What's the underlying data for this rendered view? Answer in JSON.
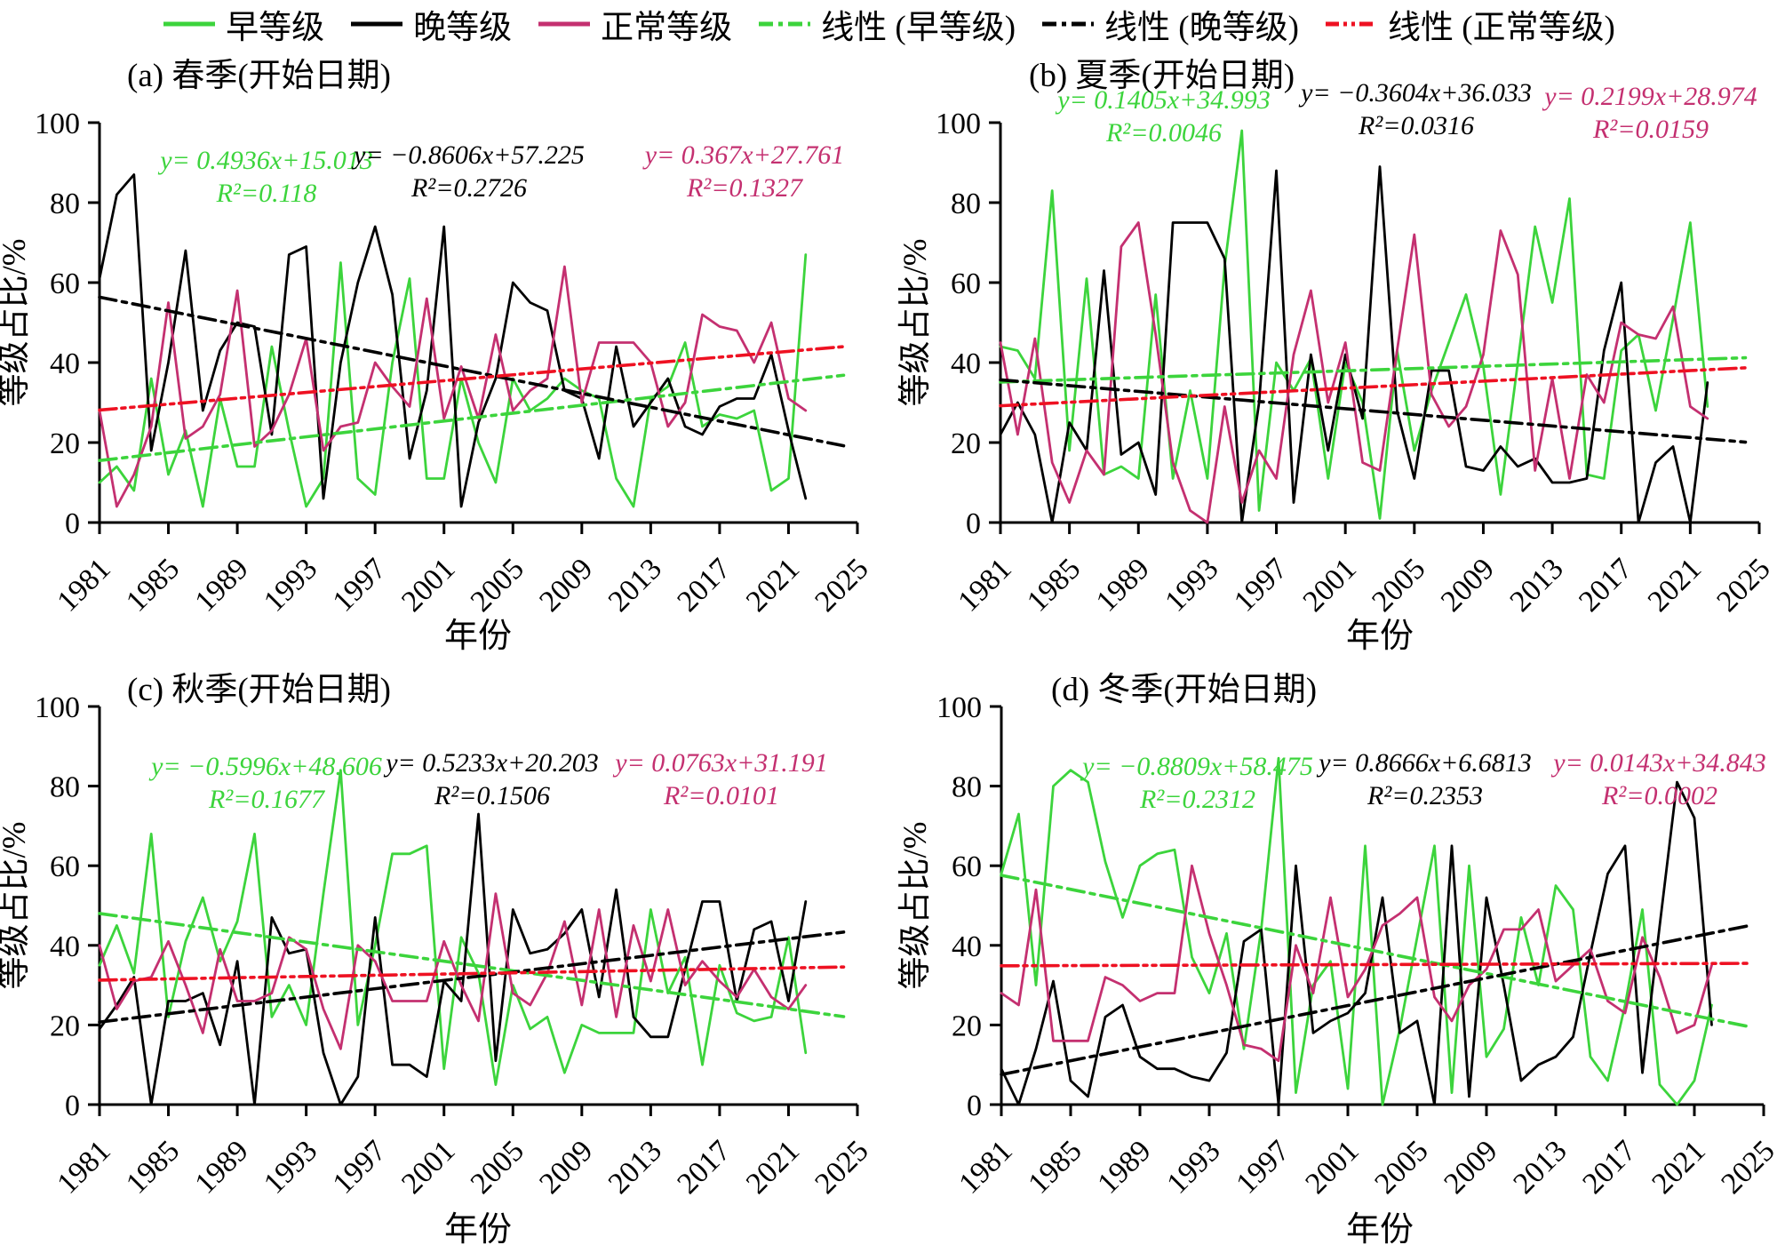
{
  "colors": {
    "early": "#3cd43c",
    "late": "#000000",
    "normal": "#c43070",
    "trend_normal": "#ee1122",
    "background": "#ffffff"
  },
  "legend": {
    "items": [
      {
        "label": "早等级",
        "color": "#3cd43c",
        "style": "solid"
      },
      {
        "label": "晚等级",
        "color": "#000000",
        "style": "solid"
      },
      {
        "label": "正常等级",
        "color": "#c43070",
        "style": "solid"
      },
      {
        "label": "线性 (早等级)",
        "color": "#3cd43c",
        "style": "dashdot"
      },
      {
        "label": "线性 (晚等级)",
        "color": "#000000",
        "style": "dashdot"
      },
      {
        "label": "线性 (正常等级)",
        "color": "#ee1122",
        "style": "dashdot"
      }
    ]
  },
  "chart_data": [
    {
      "type": "line",
      "title": "(a) 春季(开始日期)",
      "xlabel": "年份",
      "ylabel": "等级占比/%",
      "xlim": [
        1981,
        2025
      ],
      "ylim": [
        0,
        100
      ],
      "x_ticks": [
        1981,
        1985,
        1989,
        1993,
        1997,
        2001,
        2005,
        2009,
        2013,
        2017,
        2021,
        2025
      ],
      "y_ticks": [
        0,
        20,
        40,
        60,
        80,
        100
      ],
      "years": [
        1981,
        1982,
        1983,
        1984,
        1985,
        1986,
        1987,
        1988,
        1989,
        1990,
        1991,
        1992,
        1993,
        1994,
        1995,
        1996,
        1997,
        1998,
        1999,
        2000,
        2001,
        2002,
        2003,
        2004,
        2005,
        2006,
        2007,
        2008,
        2009,
        2010,
        2011,
        2012,
        2013,
        2014,
        2015,
        2016,
        2017,
        2018,
        2019,
        2020,
        2021,
        2022
      ],
      "series": [
        {
          "name": "早等级",
          "color": "#3cd43c",
          "values": [
            10,
            14,
            8,
            36,
            12,
            23,
            4,
            31,
            14,
            14,
            44,
            23,
            4,
            11,
            65,
            11,
            7,
            40,
            61,
            11,
            11,
            36,
            20,
            10,
            36,
            28,
            31,
            36,
            33,
            31,
            11,
            4,
            31,
            34,
            45,
            24,
            27,
            26,
            28,
            8,
            11,
            67
          ]
        },
        {
          "name": "晚等级",
          "color": "#000000",
          "values": [
            61,
            82,
            87,
            18,
            40,
            68,
            28,
            43,
            50,
            49,
            22,
            67,
            69,
            6,
            40,
            60,
            74,
            57,
            16,
            33,
            74,
            4,
            25,
            36,
            60,
            55,
            53,
            33,
            31,
            16,
            44,
            24,
            30,
            36,
            24,
            22,
            29,
            31,
            31,
            42,
            23,
            6
          ]
        },
        {
          "name": "正常等级",
          "color": "#c43070",
          "values": [
            28,
            4,
            12,
            24,
            55,
            21,
            24,
            32,
            58,
            19,
            23,
            32,
            46,
            18,
            24,
            25,
            40,
            34,
            29,
            56,
            26,
            39,
            26,
            47,
            28,
            33,
            36,
            64,
            30,
            45,
            45,
            45,
            40,
            24,
            30,
            52,
            49,
            48,
            40,
            50,
            31,
            28
          ]
        }
      ],
      "trends": [
        {
          "name": "线性 (早等级)",
          "line_color": "#3cd43c",
          "text_color": "#3cd43c",
          "slope": 0.4936,
          "intercept": 15.013,
          "equation": "y= 0.4936x+15.013",
          "r2": "R²=0.118"
        },
        {
          "name": "线性 (晚等级)",
          "line_color": "#000000",
          "text_color": "#000000",
          "slope": -0.8606,
          "intercept": 57.225,
          "equation": "y= −0.8606x+57.225",
          "r2": "R²=0.2726"
        },
        {
          "name": "线性 (正常等级)",
          "line_color": "#ee1122",
          "text_color": "#c43070",
          "slope": 0.367,
          "intercept": 27.761,
          "equation": "y= 0.367x+27.761",
          "r2": "R²=0.1327"
        }
      ]
    },
    {
      "type": "line",
      "title": "(b) 夏季(开始日期)",
      "xlabel": "年份",
      "ylabel": "等级占比/%",
      "xlim": [
        1981,
        2025
      ],
      "ylim": [
        0,
        100
      ],
      "x_ticks": [
        1981,
        1985,
        1989,
        1993,
        1997,
        2001,
        2005,
        2009,
        2013,
        2017,
        2021,
        2025
      ],
      "y_ticks": [
        0,
        20,
        40,
        60,
        80,
        100
      ],
      "years": [
        1981,
        1982,
        1983,
        1984,
        1985,
        1986,
        1987,
        1988,
        1989,
        1990,
        1991,
        1992,
        1993,
        1994,
        1995,
        1996,
        1997,
        1998,
        1999,
        2000,
        2001,
        2002,
        2003,
        2004,
        2005,
        2006,
        2007,
        2008,
        2009,
        2010,
        2011,
        2012,
        2013,
        2014,
        2015,
        2016,
        2017,
        2018,
        2019,
        2020,
        2021,
        2022
      ],
      "series": [
        {
          "name": "早等级",
          "color": "#3cd43c",
          "values": [
            44,
            43,
            36,
            83,
            18,
            61,
            12,
            14,
            11,
            57,
            11,
            33,
            11,
            64,
            98,
            3,
            40,
            33,
            41,
            11,
            40,
            30,
            1,
            43,
            18,
            33,
            45,
            57,
            39,
            7,
            40,
            74,
            55,
            81,
            12,
            11,
            43,
            47,
            28,
            51,
            75,
            29
          ]
        },
        {
          "name": "晚等级",
          "color": "#000000",
          "values": [
            22,
            30,
            22,
            0,
            25,
            18,
            63,
            17,
            20,
            7,
            75,
            75,
            75,
            66,
            0,
            30,
            88,
            5,
            42,
            18,
            42,
            26,
            89,
            28,
            11,
            38,
            38,
            14,
            13,
            19,
            14,
            16,
            10,
            10,
            11,
            43,
            60,
            0,
            15,
            19,
            0,
            35
          ]
        },
        {
          "name": "正常等级",
          "color": "#c43070",
          "values": [
            45,
            22,
            46,
            15,
            5,
            18,
            12,
            69,
            75,
            47,
            15,
            3,
            0,
            29,
            5,
            18,
            11,
            42,
            58,
            30,
            45,
            15,
            13,
            43,
            72,
            32,
            24,
            29,
            42,
            73,
            62,
            13,
            36,
            11,
            37,
            30,
            50,
            47,
            46,
            54,
            29,
            26
          ]
        }
      ],
      "trends": [
        {
          "name": "线性 (早等级)",
          "line_color": "#3cd43c",
          "text_color": "#3cd43c",
          "slope": 0.1405,
          "intercept": 34.993,
          "equation": "y= 0.1405x+34.993",
          "r2": "R²=0.0046"
        },
        {
          "name": "线性 (晚等级)",
          "line_color": "#000000",
          "text_color": "#000000",
          "slope": -0.3604,
          "intercept": 36.033,
          "equation": "y= −0.3604x+36.033",
          "r2": "R²=0.0316"
        },
        {
          "name": "线性 (正常等级)",
          "line_color": "#ee1122",
          "text_color": "#c43070",
          "slope": 0.2199,
          "intercept": 28.974,
          "equation": "y= 0.2199x+28.974",
          "r2": "R²=0.0159"
        }
      ]
    },
    {
      "type": "line",
      "title": "(c) 秋季(开始日期)",
      "xlabel": "年份",
      "ylabel": "等级占比/%",
      "xlim": [
        1981,
        2025
      ],
      "ylim": [
        0,
        100
      ],
      "x_ticks": [
        1981,
        1985,
        1989,
        1993,
        1997,
        2001,
        2005,
        2009,
        2013,
        2017,
        2021,
        2025
      ],
      "y_ticks": [
        0,
        20,
        40,
        60,
        80,
        100
      ],
      "years": [
        1981,
        1982,
        1983,
        1984,
        1985,
        1986,
        1987,
        1988,
        1989,
        1990,
        1991,
        1992,
        1993,
        1994,
        1995,
        1996,
        1997,
        1998,
        1999,
        2000,
        2001,
        2002,
        2003,
        2004,
        2005,
        2006,
        2007,
        2008,
        2009,
        2010,
        2011,
        2012,
        2013,
        2014,
        2015,
        2016,
        2017,
        2018,
        2019,
        2020,
        2021,
        2022
      ],
      "series": [
        {
          "name": "早等级",
          "color": "#3cd43c",
          "values": [
            35,
            45,
            33,
            68,
            22,
            41,
            52,
            36,
            46,
            68,
            22,
            30,
            20,
            53,
            84,
            20,
            40,
            63,
            63,
            65,
            9,
            42,
            33,
            5,
            30,
            19,
            22,
            8,
            20,
            18,
            18,
            18,
            49,
            28,
            37,
            10,
            35,
            23,
            21,
            22,
            42,
            13
          ]
        },
        {
          "name": "晚等级",
          "color": "#000000",
          "values": [
            19,
            25,
            32,
            0,
            26,
            26,
            28,
            15,
            36,
            0,
            47,
            38,
            39,
            13,
            0,
            7,
            47,
            10,
            10,
            7,
            31,
            26,
            73,
            11,
            49,
            38,
            39,
            43,
            49,
            27,
            54,
            22,
            17,
            17,
            34,
            51,
            51,
            26,
            44,
            46,
            26,
            51
          ]
        },
        {
          "name": "正常等级",
          "color": "#c43070",
          "values": [
            40,
            24,
            31,
            32,
            41,
            30,
            18,
            39,
            26,
            26,
            28,
            42,
            39,
            24,
            14,
            40,
            36,
            26,
            26,
            26,
            41,
            30,
            21,
            53,
            28,
            25,
            33,
            46,
            25,
            49,
            22,
            45,
            31,
            49,
            30,
            36,
            31,
            27,
            34,
            27,
            24,
            30
          ]
        }
      ],
      "trends": [
        {
          "name": "线性 (早等级)",
          "line_color": "#3cd43c",
          "text_color": "#3cd43c",
          "slope": -0.5996,
          "intercept": 48.606,
          "equation": "y= −0.5996x+48.606",
          "r2": "R²=0.1677"
        },
        {
          "name": "线性 (晚等级)",
          "line_color": "#000000",
          "text_color": "#000000",
          "slope": 0.5233,
          "intercept": 20.203,
          "equation": "y= 0.5233x+20.203",
          "r2": "R²=0.1506"
        },
        {
          "name": "线性 (正常等级)",
          "line_color": "#ee1122",
          "text_color": "#c43070",
          "slope": 0.0763,
          "intercept": 31.191,
          "equation": "y= 0.0763x+31.191",
          "r2": "R²=0.0101"
        }
      ]
    },
    {
      "type": "line",
      "title": "(d) 冬季(开始日期)",
      "xlabel": "年份",
      "ylabel": "等级占比/%",
      "xlim": [
        1981,
        2025
      ],
      "ylim": [
        0,
        100
      ],
      "x_ticks": [
        1981,
        1985,
        1989,
        1993,
        1997,
        2001,
        2005,
        2009,
        2013,
        2017,
        2021,
        2025
      ],
      "y_ticks": [
        0,
        20,
        40,
        60,
        80,
        100
      ],
      "years": [
        1981,
        1982,
        1983,
        1984,
        1985,
        1986,
        1987,
        1988,
        1989,
        1990,
        1991,
        1992,
        1993,
        1994,
        1995,
        1996,
        1997,
        1998,
        1999,
        2000,
        2001,
        2002,
        2003,
        2004,
        2005,
        2006,
        2007,
        2008,
        2009,
        2010,
        2011,
        2012,
        2013,
        2014,
        2015,
        2016,
        2017,
        2018,
        2019,
        2020,
        2021,
        2022
      ],
      "series": [
        {
          "name": "早等级",
          "color": "#3cd43c",
          "values": [
            58,
            73,
            30,
            80,
            84,
            81,
            61,
            47,
            60,
            63,
            64,
            37,
            28,
            43,
            14,
            44,
            87,
            3,
            30,
            36,
            4,
            65,
            0,
            19,
            42,
            65,
            3,
            60,
            12,
            19,
            47,
            30,
            55,
            49,
            12,
            6,
            25,
            49,
            5,
            0,
            6,
            25
          ]
        },
        {
          "name": "晚等级",
          "color": "#000000",
          "values": [
            9,
            0,
            14,
            31,
            6,
            2,
            22,
            25,
            12,
            9,
            9,
            7,
            6,
            13,
            41,
            44,
            0,
            60,
            18,
            21,
            23,
            28,
            52,
            18,
            21,
            0,
            65,
            2,
            52,
            30,
            6,
            10,
            12,
            17,
            38,
            58,
            65,
            8,
            45,
            81,
            72,
            20
          ]
        },
        {
          "name": "正常等级",
          "color": "#c43070",
          "values": [
            28,
            25,
            54,
            16,
            16,
            16,
            32,
            30,
            26,
            28,
            28,
            60,
            43,
            30,
            15,
            14,
            11,
            40,
            28,
            52,
            27,
            34,
            45,
            48,
            52,
            27,
            21,
            30,
            34,
            44,
            44,
            49,
            31,
            35,
            39,
            26,
            23,
            42,
            32,
            18,
            20,
            35
          ]
        }
      ],
      "trends": [
        {
          "name": "线性 (早等级)",
          "line_color": "#3cd43c",
          "text_color": "#3cd43c",
          "slope": -0.8809,
          "intercept": 58.475,
          "equation": "y= −0.8809x+58.475",
          "r2": "R²=0.2312"
        },
        {
          "name": "线性 (晚等级)",
          "line_color": "#000000",
          "text_color": "#000000",
          "slope": 0.8666,
          "intercept": 6.6813,
          "equation": "y= 0.8666x+6.6813",
          "r2": "R²=0.2353"
        },
        {
          "name": "线性 (正常等级)",
          "line_color": "#ee1122",
          "text_color": "#c43070",
          "slope": 0.0143,
          "intercept": 34.843,
          "equation": "y= 0.0143x+34.843",
          "r2": "R²=0.0002"
        }
      ]
    }
  ]
}
